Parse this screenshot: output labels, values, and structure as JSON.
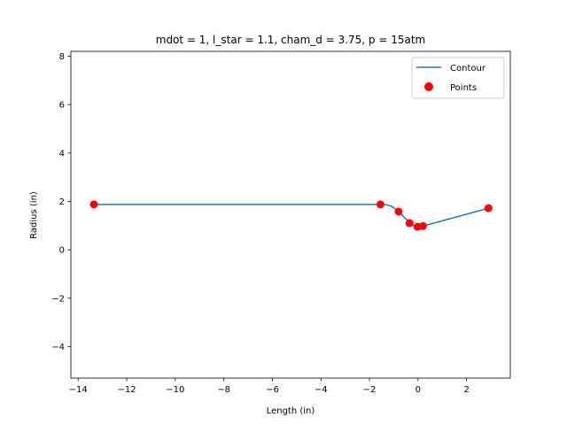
{
  "chart_data": {
    "type": "line",
    "title": "mdot = 1, l_star = 1.1, cham_d = 3.75, p = 15atm",
    "xlabel": "Length (in)",
    "ylabel": "Radius (in)",
    "xlim": [
      -14.3,
      3.8
    ],
    "ylim": [
      -5.3,
      8.2
    ],
    "xticks": [
      -14,
      -12,
      -10,
      -8,
      -6,
      -4,
      -2,
      0,
      2
    ],
    "yticks": [
      -4,
      -2,
      0,
      2,
      4,
      6,
      8
    ],
    "grid": false,
    "legend_position": "upper right",
    "series": [
      {
        "name": "Contour",
        "kind": "line",
        "color": "#1f77b4",
        "x": [
          -13.35,
          -1.55,
          -1.3,
          -1.1,
          -0.95,
          -0.8,
          -0.6,
          -0.4,
          -0.3,
          -0.2,
          -0.1,
          0.0,
          0.1,
          0.2,
          2.9
        ],
        "y": [
          1.875,
          1.875,
          1.86,
          1.8,
          1.7,
          1.58,
          1.38,
          1.17,
          1.1,
          1.02,
          0.97,
          0.95,
          0.96,
          0.98,
          1.72
        ]
      },
      {
        "name": "Points",
        "kind": "scatter",
        "color": "#ff0000",
        "x": [
          -13.35,
          -1.55,
          -0.8,
          -0.35,
          -0.02,
          0.2,
          2.9
        ],
        "y": [
          1.875,
          1.875,
          1.58,
          1.1,
          0.95,
          0.98,
          1.72
        ]
      }
    ]
  }
}
